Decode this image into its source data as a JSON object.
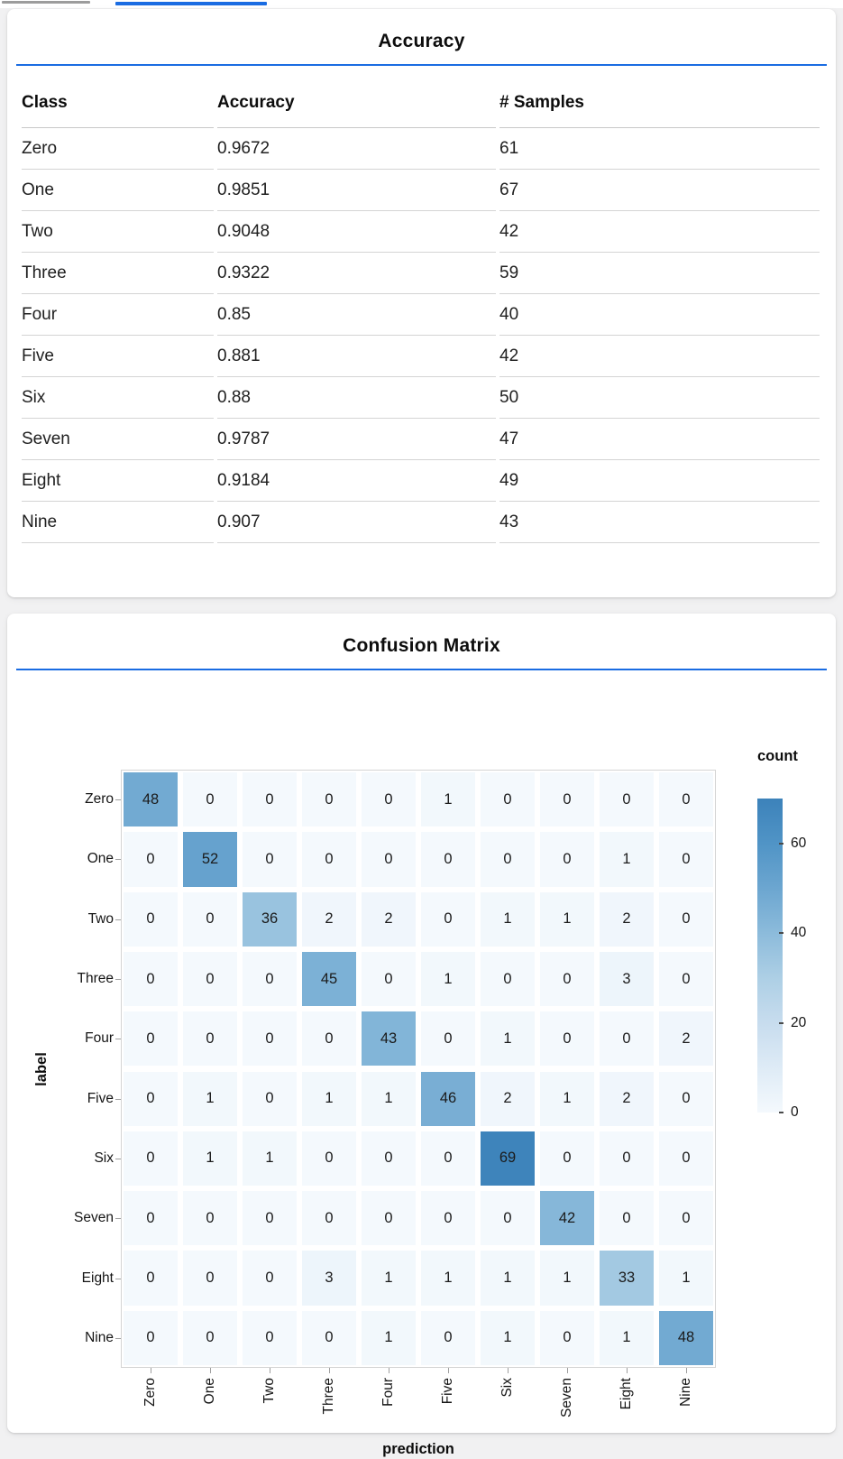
{
  "top_bars": {
    "gray_color": "#9c9c9c",
    "blue_color": "#1a6ce2"
  },
  "accent_rule_color": "#1a6ce2",
  "accuracy_card": {
    "title": "Accuracy",
    "table": {
      "headers": [
        "Class",
        "Accuracy",
        "# Samples"
      ],
      "rows": [
        [
          "Zero",
          "0.9672",
          "61"
        ],
        [
          "One",
          "0.9851",
          "67"
        ],
        [
          "Two",
          "0.9048",
          "42"
        ],
        [
          "Three",
          "0.9322",
          "59"
        ],
        [
          "Four",
          "0.85",
          "40"
        ],
        [
          "Five",
          "0.881",
          "42"
        ],
        [
          "Six",
          "0.88",
          "50"
        ],
        [
          "Seven",
          "0.9787",
          "47"
        ],
        [
          "Eight",
          "0.9184",
          "49"
        ],
        [
          "Nine",
          "0.907",
          "43"
        ]
      ]
    }
  },
  "confusion_card": {
    "title": "Confusion Matrix"
  },
  "chart_data": {
    "type": "heatmap",
    "title": "Confusion Matrix",
    "xlabel": "prediction",
    "ylabel": "label",
    "x_categories": [
      "Zero",
      "One",
      "Two",
      "Three",
      "Four",
      "Five",
      "Six",
      "Seven",
      "Eight",
      "Nine"
    ],
    "y_categories": [
      "Zero",
      "One",
      "Two",
      "Three",
      "Four",
      "Five",
      "Six",
      "Seven",
      "Eight",
      "Nine"
    ],
    "values": [
      [
        48,
        0,
        0,
        0,
        0,
        1,
        0,
        0,
        0,
        0
      ],
      [
        0,
        52,
        0,
        0,
        0,
        0,
        0,
        0,
        1,
        0
      ],
      [
        0,
        0,
        36,
        2,
        2,
        0,
        1,
        1,
        2,
        0
      ],
      [
        0,
        0,
        0,
        45,
        0,
        1,
        0,
        0,
        3,
        0
      ],
      [
        0,
        0,
        0,
        0,
        43,
        0,
        1,
        0,
        0,
        2
      ],
      [
        0,
        1,
        0,
        1,
        1,
        46,
        2,
        1,
        2,
        0
      ],
      [
        0,
        1,
        1,
        0,
        0,
        0,
        69,
        0,
        0,
        0
      ],
      [
        0,
        0,
        0,
        0,
        0,
        0,
        0,
        42,
        0,
        0
      ],
      [
        0,
        0,
        0,
        3,
        1,
        1,
        1,
        1,
        33,
        1
      ],
      [
        0,
        0,
        0,
        0,
        1,
        0,
        1,
        0,
        1,
        48
      ]
    ],
    "legend": {
      "title": "count",
      "ticks": [
        0,
        20,
        40,
        60
      ],
      "domain": [
        0,
        70
      ],
      "position": "right"
    },
    "grid": false,
    "color_ramp": [
      {
        "v": 0,
        "c": "#f4f9fd"
      },
      {
        "v": 10,
        "c": "#deebf6"
      },
      {
        "v": 20,
        "c": "#c7dcee"
      },
      {
        "v": 30,
        "c": "#adcfe5"
      },
      {
        "v": 40,
        "c": "#8cbbdb"
      },
      {
        "v": 50,
        "c": "#6ca6d0"
      },
      {
        "v": 60,
        "c": "#5094c6"
      },
      {
        "v": 70,
        "c": "#3c82ba"
      }
    ]
  }
}
